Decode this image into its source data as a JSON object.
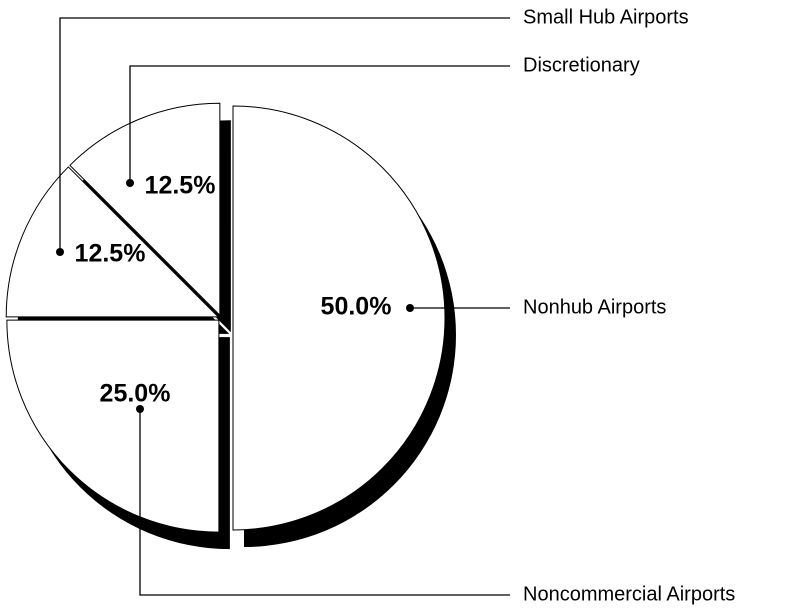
{
  "chart_data": {
    "type": "pie",
    "categories": [
      "Nonhub Airports",
      "Noncommercial Airports",
      "Small Hub Airports",
      "Discretionary"
    ],
    "values": [
      50,
      25,
      12.5,
      12.5
    ],
    "value_labels": [
      "50.0%",
      "25.0%",
      "12.5%",
      "12.5%"
    ],
    "color": "#ffffff"
  }
}
